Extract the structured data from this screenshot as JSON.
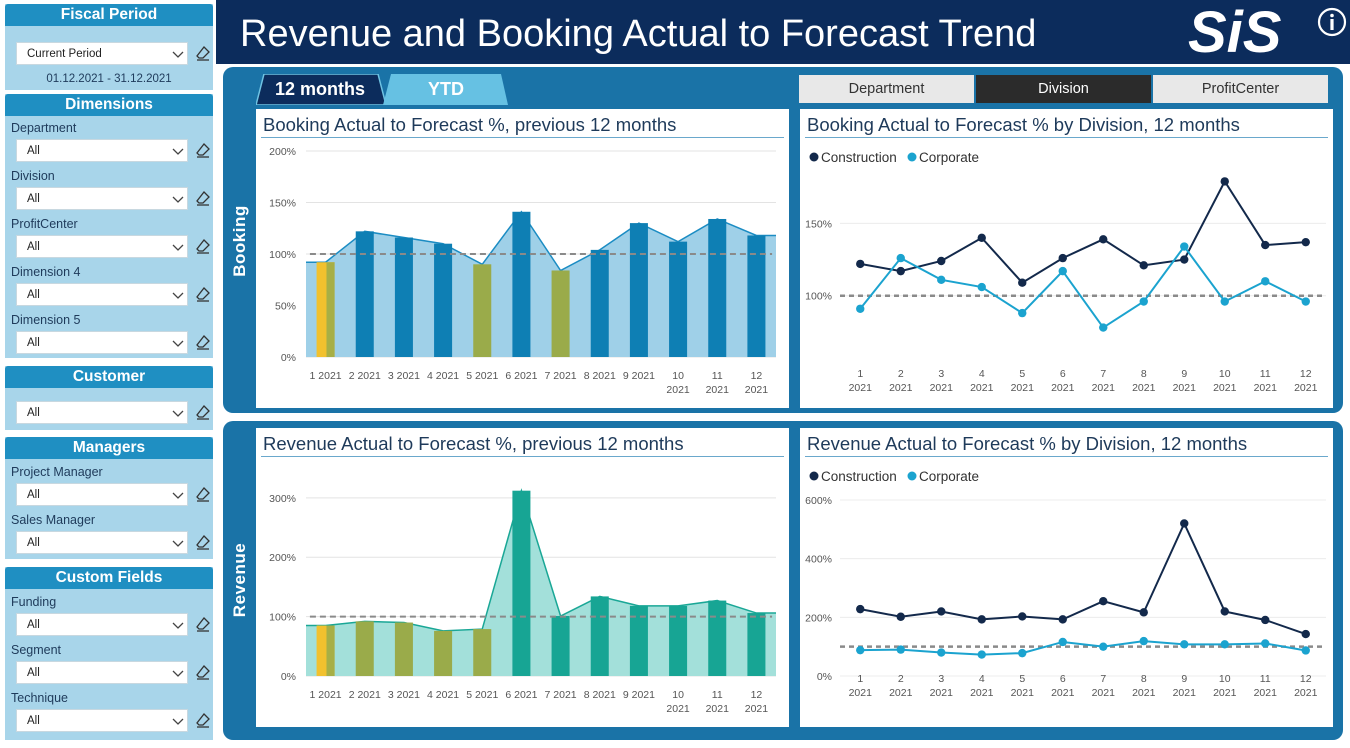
{
  "header": {
    "title": "Revenue and Booking Actual to Forecast Trend",
    "logo_text": "SiS",
    "info_icon": "info-icon"
  },
  "sidebar": {
    "fiscal": {
      "title": "Fiscal Period",
      "value": "Current Period",
      "dates": "01.12.2021 - 31.12.2021"
    },
    "dimensions": {
      "title": "Dimensions",
      "fields": [
        {
          "label": "Department",
          "value": "All"
        },
        {
          "label": "Division",
          "value": "All"
        },
        {
          "label": "ProfitCenter",
          "value": "All"
        },
        {
          "label": "Dimension 4",
          "value": "All"
        },
        {
          "label": "Dimension 5",
          "value": "All"
        }
      ]
    },
    "customer": {
      "title": "Customer",
      "value": "All"
    },
    "managers": {
      "title": "Managers",
      "fields": [
        {
          "label": "Project Manager",
          "value": "All"
        },
        {
          "label": "Sales Manager",
          "value": "All"
        }
      ]
    },
    "custom_fields": {
      "title": "Custom Fields",
      "fields": [
        {
          "label": "Funding",
          "value": "All"
        },
        {
          "label": "Segment",
          "value": "All"
        },
        {
          "label": "Technique",
          "value": "All"
        }
      ]
    }
  },
  "tabs": [
    {
      "label": "12 months",
      "active": true
    },
    {
      "label": "YTD",
      "active": false
    }
  ],
  "segments": [
    {
      "label": "Department",
      "active": false
    },
    {
      "label": "Division",
      "active": true
    },
    {
      "label": "ProfitCenter",
      "active": false
    }
  ],
  "rows": {
    "booking": "Booking",
    "revenue": "Revenue"
  },
  "colors": {
    "navy": "#0c2c5c",
    "panel": "#1a73a7",
    "construction": "#13294b",
    "corporate": "#1ba3cf",
    "yellow": "#f2c12e",
    "olive": "#9aab4a",
    "booking_bar": "#0e7fb4",
    "booking_area": "#9fd0e8",
    "revenue_bar": "#17a594",
    "revenue_area": "#a3e0da"
  },
  "chart_data": [
    {
      "type": "bar",
      "title": "Booking Actual to Forecast %, previous 12 months",
      "categories": [
        "1 2021",
        "2 2021",
        "3 2021",
        "4 2021",
        "5 2021",
        "6 2021",
        "7 2021",
        "8 2021",
        "9 2021",
        "10 2021",
        "11 2021",
        "12 2021"
      ],
      "values": [
        92,
        122,
        116,
        110,
        90,
        141,
        84,
        104,
        130,
        112,
        134,
        118
      ],
      "bar_status": [
        "yellow",
        "normal",
        "normal",
        "normal",
        "olive",
        "normal",
        "olive",
        "normal",
        "normal",
        "normal",
        "normal",
        "normal"
      ],
      "reference": 100,
      "yticks": [
        "0%",
        "50%",
        "100%",
        "150%",
        "200%"
      ],
      "ylim": [
        0,
        200
      ]
    },
    {
      "type": "line",
      "title": "Booking Actual to Forecast % by Division, 12 months",
      "legend": [
        "Construction",
        "Corporate"
      ],
      "x": [
        "1 2021",
        "2 2021",
        "3 2021",
        "4 2021",
        "5 2021",
        "6 2021",
        "7 2021",
        "8 2021",
        "9 2021",
        "10 2021",
        "11 2021",
        "12 2021"
      ],
      "series": [
        {
          "name": "Construction",
          "values": [
            122,
            117,
            124,
            140,
            109,
            126,
            139,
            121,
            125,
            179,
            135,
            137
          ]
        },
        {
          "name": "Corporate",
          "values": [
            91,
            126,
            111,
            106,
            88,
            117,
            78,
            96,
            134,
            96,
            110,
            96
          ]
        }
      ],
      "reference": 100,
      "yticks": [
        "100%",
        "150%"
      ],
      "ylim": [
        48,
        200
      ]
    },
    {
      "type": "bar",
      "title": "Revenue Actual to Forecast %, previous 12 months",
      "categories": [
        "1 2021",
        "2 2021",
        "3 2021",
        "4 2021",
        "5 2021",
        "6 2021",
        "7 2021",
        "8 2021",
        "9 2021",
        "10 2021",
        "11 2021",
        "12 2021"
      ],
      "values": [
        85,
        92,
        90,
        76,
        79,
        312,
        101,
        134,
        118,
        118,
        127,
        106
      ],
      "bar_status": [
        "yellow",
        "olive",
        "olive",
        "olive",
        "olive",
        "normal",
        "normal",
        "normal",
        "normal",
        "normal",
        "normal",
        "normal"
      ],
      "reference": 100,
      "yticks": [
        "0%",
        "100%",
        "200%",
        "300%"
      ],
      "ylim": [
        0,
        330
      ]
    },
    {
      "type": "line",
      "title": "Revenue Actual to Forecast % by Division, 12 months",
      "legend": [
        "Construction",
        "Corporate"
      ],
      "x": [
        "1 2021",
        "2 2021",
        "3 2021",
        "4 2021",
        "5 2021",
        "6 2021",
        "7 2021",
        "8 2021",
        "9 2021",
        "10 2021",
        "11 2021",
        "12 2021"
      ],
      "series": [
        {
          "name": "Construction",
          "values": [
            228,
            202,
            220,
            193,
            203,
            193,
            255,
            217,
            520,
            220,
            191,
            143
          ]
        },
        {
          "name": "Corporate",
          "values": [
            88,
            90,
            80,
            73,
            78,
            116,
            100,
            119,
            108,
            108,
            111,
            87
          ]
        }
      ],
      "reference": 100,
      "yticks": [
        "0%",
        "200%",
        "400%",
        "600%"
      ],
      "ylim": [
        0,
        600
      ]
    }
  ]
}
